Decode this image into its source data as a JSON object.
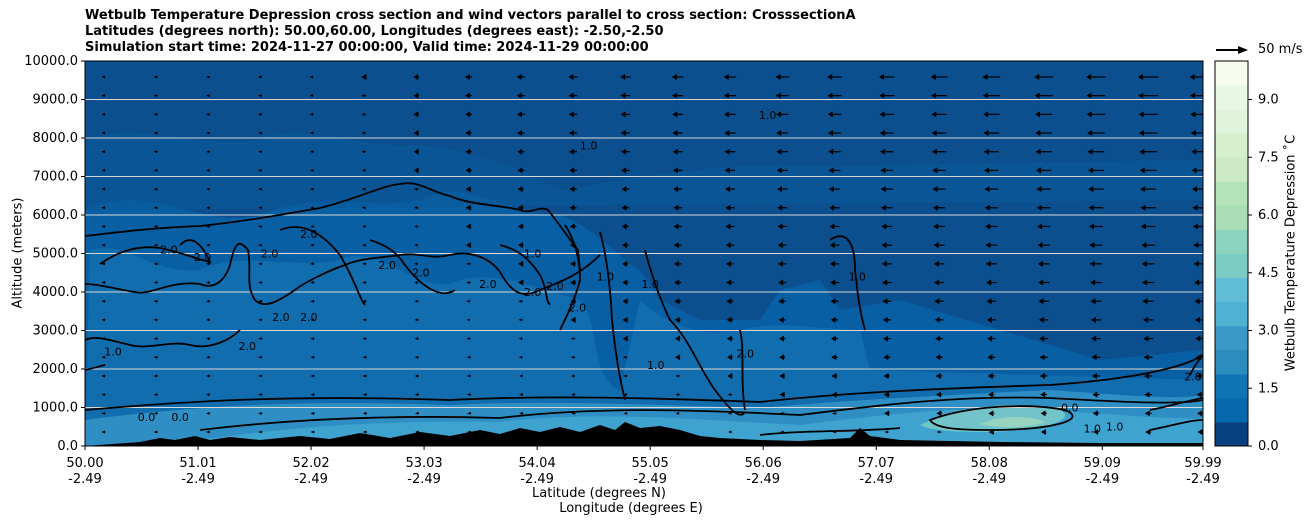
{
  "chart_data": {
    "type": "contour",
    "title_lines": [
      "Wetbulb Temperature Depression cross section and wind vectors parallel to cross section: CrosssectionA",
      "Latitudes (degrees north): 50.00,60.00, Longitudes (degrees east): -2.50,-2.50",
      "Simulation start time: 2024-11-27 00:00:00, Valid time: 2024-11-29 00:00:00"
    ],
    "ylabel": "Altitude (meters)",
    "xlabel_lat": "Latitude (degrees N)",
    "xlabel_lon": "Longitude (degrees E)",
    "ylim": [
      0,
      10000
    ],
    "y_ticks": [
      "0.0",
      "1000.0",
      "2000.0",
      "3000.0",
      "4000.0",
      "5000.0",
      "6000.0",
      "7000.0",
      "8000.0",
      "9000.0",
      "10000.0"
    ],
    "x_ticks_lat": [
      "50.00",
      "51.01",
      "52.02",
      "53.03",
      "54.04",
      "55.05",
      "56.06",
      "57.07",
      "58.08",
      "59.09",
      "59.99"
    ],
    "x_ticks_lon": [
      "-2.49",
      "-2.49",
      "-2.49",
      "-2.49",
      "-2.49",
      "-2.49",
      "-2.49",
      "-2.49",
      "-2.49",
      "-2.49",
      "-2.49"
    ],
    "grid": "horizontal",
    "colorbar": {
      "label": "Wetbulb Temperature Depression ˚C",
      "range": [
        0,
        10
      ],
      "ticks": [
        "0.0",
        "1.5",
        "3.0",
        "4.5",
        "6.0",
        "7.5",
        "9.0"
      ],
      "colormap": "GnBu"
    },
    "vector_key": "50 m/s",
    "contour_labels": [
      {
        "text": "1.0",
        "lat": 50.25,
        "alt": 2350
      },
      {
        "text": "2.0",
        "lat": 50.75,
        "alt": 5000
      },
      {
        "text": "2.0",
        "lat": 51.05,
        "alt": 4800
      },
      {
        "text": "2.0",
        "lat": 51.65,
        "alt": 4900
      },
      {
        "text": "2.0",
        "lat": 51.45,
        "alt": 2500
      },
      {
        "text": "2.0",
        "lat": 51.75,
        "alt": 3250
      },
      {
        "text": "2.0",
        "lat": 52.0,
        "alt": 3250
      },
      {
        "text": "2.0",
        "lat": 52.0,
        "alt": 5400
      },
      {
        "text": "2.0",
        "lat": 52.7,
        "alt": 4600
      },
      {
        "text": "2.0",
        "lat": 53.0,
        "alt": 4400
      },
      {
        "text": "2.0",
        "lat": 53.6,
        "alt": 4100
      },
      {
        "text": "1.0",
        "lat": 54.0,
        "alt": 4900
      },
      {
        "text": "2.0",
        "lat": 54.0,
        "alt": 3900
      },
      {
        "text": "2.0",
        "lat": 54.2,
        "alt": 4050
      },
      {
        "text": "2.0",
        "lat": 54.4,
        "alt": 3500
      },
      {
        "text": "1.0",
        "lat": 54.65,
        "alt": 4300
      },
      {
        "text": "1.0",
        "lat": 55.1,
        "alt": 2000
      },
      {
        "text": "1.0",
        "lat": 55.05,
        "alt": 4100
      },
      {
        "text": "2.0",
        "lat": 55.9,
        "alt": 2300
      },
      {
        "text": "1.0",
        "lat": 56.1,
        "alt": 8500
      },
      {
        "text": "1.0",
        "lat": 54.5,
        "alt": 7700
      },
      {
        "text": "1.0",
        "lat": 56.9,
        "alt": 4300
      },
      {
        "text": "0.0",
        "lat": 50.55,
        "alt": 650
      },
      {
        "text": "0.0",
        "lat": 50.85,
        "alt": 650
      },
      {
        "text": "2.0",
        "lat": 59.9,
        "alt": 1700
      },
      {
        "text": "0.0",
        "lat": 58.8,
        "alt": 900
      },
      {
        "text": "1.0",
        "lat": 59.0,
        "alt": 350
      },
      {
        "text": "1.0",
        "lat": 59.2,
        "alt": 400
      }
    ]
  }
}
